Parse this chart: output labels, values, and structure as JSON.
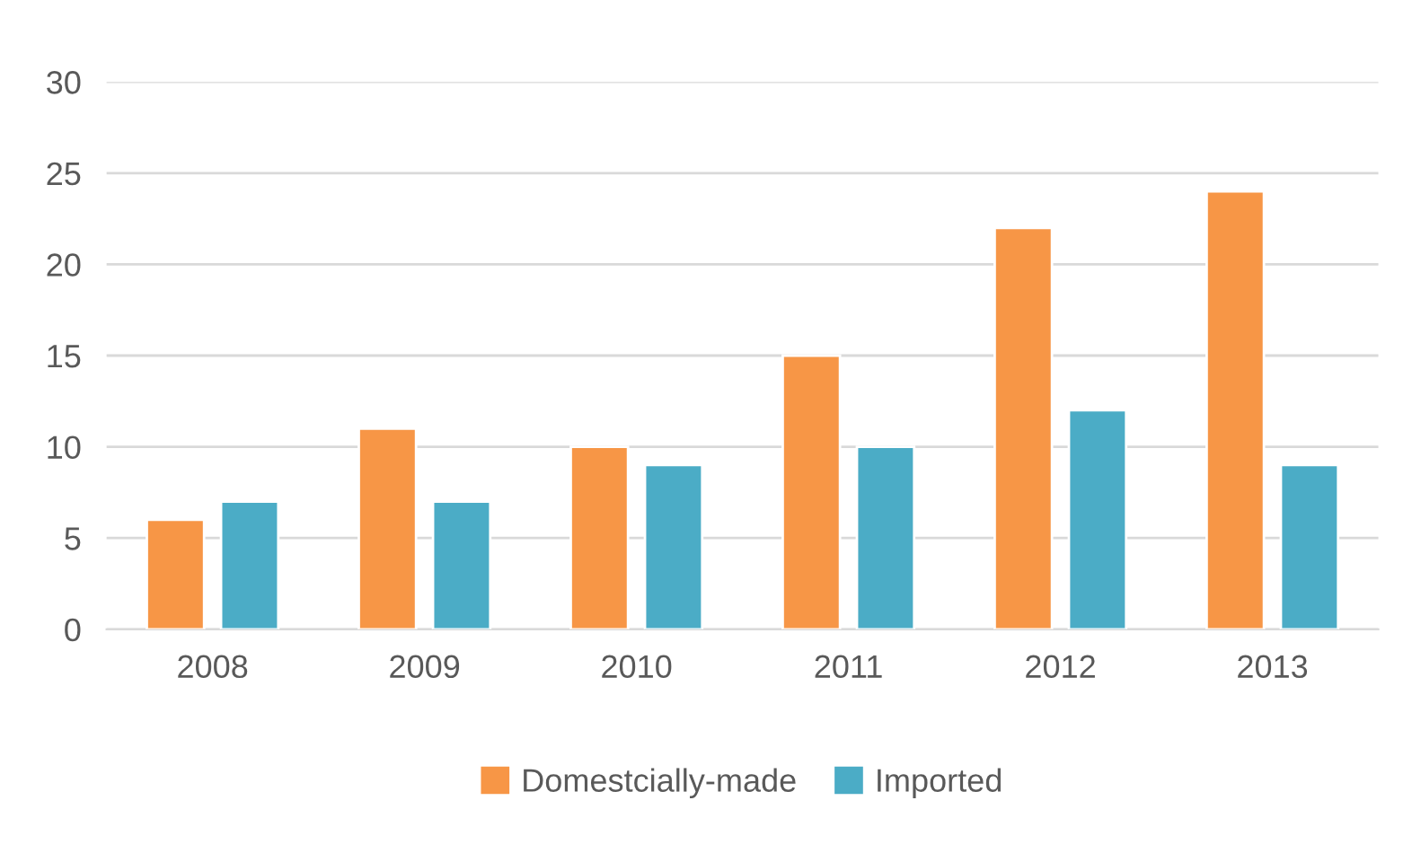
{
  "chart_data": {
    "type": "bar",
    "categories": [
      "2008",
      "2009",
      "2010",
      "2011",
      "2012",
      "2013"
    ],
    "series": [
      {
        "name": "Domestcially-made",
        "color": "#f79646",
        "values": [
          6,
          11,
          10,
          15,
          22,
          24
        ]
      },
      {
        "name": "Imported",
        "color": "#4bacc6",
        "values": [
          7,
          7,
          9,
          10,
          12,
          9
        ]
      }
    ],
    "ylim": [
      0,
      30
    ],
    "yticks": [
      0,
      5,
      10,
      15,
      20,
      25,
      30
    ],
    "grid": "y",
    "legend": "bottom"
  }
}
